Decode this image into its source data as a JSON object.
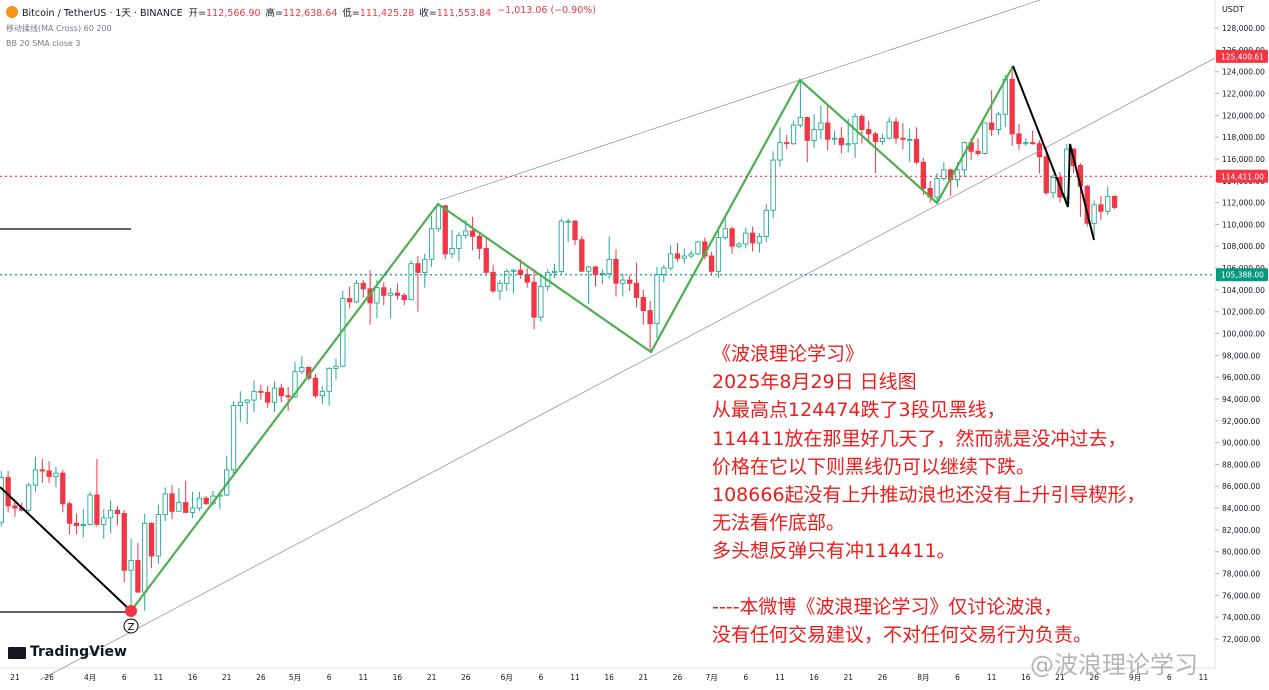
{
  "header": {
    "symbol": "Bitcoin / TetherUS · 1天 · BINANCE",
    "ohlc": [
      {
        "label": "开=",
        "text": "112,566.90"
      },
      {
        "label": "高=",
        "text": "112,638.64"
      },
      {
        "label": "低=",
        "text": "111,425.28"
      },
      {
        "label": "收=",
        "text": "111,553.84"
      }
    ],
    "change": "−1,013.06 (−0.90%)",
    "indicators": [
      "移动揉线(MA Cross) 60 200",
      "BB 20 SMA close 3"
    ],
    "currency": "USDT"
  },
  "chart_data": {
    "type": "candlestick",
    "up_color": "#22ab94",
    "down_color": "#f23645",
    "categories": [
      null,
      null,
      "21",
      null,
      null,
      null,
      null,
      "26",
      null,
      null,
      null,
      null,
      null,
      "4月",
      null,
      null,
      null,
      null,
      "6",
      null,
      null,
      null,
      null,
      "11",
      null,
      null,
      null,
      null,
      "16",
      null,
      null,
      null,
      null,
      "21",
      null,
      null,
      null,
      null,
      "26",
      null,
      null,
      null,
      null,
      "5月",
      null,
      null,
      null,
      null,
      "6",
      null,
      null,
      null,
      null,
      "11",
      null,
      null,
      null,
      null,
      "16",
      null,
      null,
      null,
      null,
      "21",
      null,
      null,
      null,
      null,
      "26",
      null,
      null,
      null,
      null,
      null,
      "6月",
      null,
      null,
      null,
      null,
      "6",
      null,
      null,
      null,
      null,
      "11",
      null,
      null,
      null,
      null,
      "16",
      null,
      null,
      null,
      null,
      "21",
      null,
      null,
      null,
      null,
      "26",
      null,
      null,
      null,
      null,
      "7月",
      null,
      null,
      null,
      null,
      "6",
      null,
      null,
      null,
      null,
      "11",
      null,
      null,
      null,
      null,
      "16",
      null,
      null,
      null,
      null,
      "21",
      null,
      null,
      null,
      null,
      "26",
      null,
      null,
      null,
      null,
      null,
      "8月",
      null,
      null,
      null,
      null,
      "6",
      null,
      null,
      null,
      null,
      "11",
      null,
      null,
      null,
      null,
      "16",
      null,
      null,
      null,
      null,
      "21",
      null,
      null,
      null,
      null,
      "26",
      null,
      null,
      null,
      null,
      null,
      "9月",
      null,
      null,
      null,
      null,
      "6",
      null,
      null,
      null,
      null,
      "11"
    ],
    "ohlc": [
      [
        82700,
        87400,
        82300,
        86800
      ],
      [
        86800,
        87400,
        83600,
        84200
      ],
      [
        84200,
        84800,
        83200,
        84000
      ],
      [
        84000,
        84500,
        83700,
        83800
      ],
      [
        83800,
        86300,
        83600,
        86100
      ],
      [
        86100,
        88700,
        85500,
        87500
      ],
      [
        87500,
        88500,
        86300,
        87400
      ],
      [
        87400,
        88300,
        86300,
        86900
      ],
      [
        86900,
        87800,
        85900,
        87200
      ],
      [
        87200,
        87500,
        83600,
        84400
      ],
      [
        84400,
        84600,
        81600,
        82600
      ],
      [
        82600,
        83500,
        81600,
        82400
      ],
      [
        82400,
        83900,
        81300,
        82500
      ],
      [
        82500,
        85500,
        82400,
        85200
      ],
      [
        85200,
        88500,
        82300,
        82500
      ],
      [
        82500,
        83900,
        81200,
        83100
      ],
      [
        83100,
        84700,
        81700,
        83800
      ],
      [
        83800,
        84200,
        82400,
        83500
      ],
      [
        83500,
        83800,
        77200,
        78300
      ],
      [
        78300,
        81200,
        74500,
        79200
      ],
      [
        79200,
        80800,
        76200,
        76300
      ],
      [
        76300,
        83500,
        74600,
        82600
      ],
      [
        82600,
        82700,
        78500,
        79600
      ],
      [
        79600,
        84300,
        78900,
        83400
      ],
      [
        83400,
        85900,
        82800,
        85300
      ],
      [
        85300,
        86100,
        83000,
        83700
      ],
      [
        83700,
        85800,
        83700,
        84500
      ],
      [
        84500,
        86500,
        83600,
        83600
      ],
      [
        83600,
        85500,
        83100,
        84000
      ],
      [
        84000,
        85500,
        83700,
        84900
      ],
      [
        84900,
        85100,
        84300,
        84400
      ],
      [
        84400,
        85600,
        84300,
        85100
      ],
      [
        85100,
        85300,
        83900,
        85200
      ],
      [
        85200,
        88800,
        85100,
        87500
      ],
      [
        87500,
        93800,
        87100,
        93400
      ],
      [
        93400,
        94700,
        91900,
        93700
      ],
      [
        93700,
        94000,
        91700,
        93900
      ],
      [
        93900,
        95700,
        92800,
        94700
      ],
      [
        94700,
        95300,
        93900,
        94600
      ],
      [
        94600,
        95200,
        93200,
        93700
      ],
      [
        93700,
        95600,
        92800,
        95000
      ],
      [
        95000,
        95400,
        93700,
        94300
      ],
      [
        94300,
        95100,
        92900,
        94200
      ],
      [
        94200,
        97400,
        94100,
        96500
      ],
      [
        96500,
        97900,
        96300,
        96900
      ],
      [
        96900,
        96900,
        95700,
        95900
      ],
      [
        95900,
        96300,
        94100,
        94300
      ],
      [
        94300,
        95200,
        93500,
        94700
      ],
      [
        94700,
        96900,
        93400,
        96800
      ],
      [
        96800,
        97700,
        95800,
        97000
      ],
      [
        97000,
        103900,
        96900,
        103200
      ],
      [
        103200,
        104300,
        102300,
        102900
      ],
      [
        102900,
        104900,
        102800,
        104600
      ],
      [
        104600,
        104900,
        103300,
        104100
      ],
      [
        104100,
        105800,
        100800,
        102800
      ],
      [
        102800,
        104900,
        101400,
        104200
      ],
      [
        104200,
        104700,
        102600,
        103500
      ],
      [
        103500,
        104200,
        101400,
        103700
      ],
      [
        103700,
        104600,
        103100,
        103500
      ],
      [
        103500,
        103700,
        102600,
        103100
      ],
      [
        103100,
        106700,
        103100,
        106400
      ],
      [
        106400,
        107100,
        102000,
        105600
      ],
      [
        105600,
        107300,
        104200,
        106800
      ],
      [
        106800,
        110800,
        106100,
        109600
      ],
      [
        109600,
        111900,
        109300,
        111700
      ],
      [
        111700,
        111800,
        106800,
        107300
      ],
      [
        107300,
        109500,
        106900,
        107800
      ],
      [
        107800,
        109300,
        106600,
        109000
      ],
      [
        109000,
        110400,
        108700,
        109400
      ],
      [
        109400,
        110700,
        107600,
        108900
      ],
      [
        108900,
        109300,
        106800,
        107800
      ],
      [
        107800,
        108900,
        105300,
        105600
      ],
      [
        105600,
        106300,
        103700,
        103900
      ],
      [
        103900,
        104900,
        103100,
        104600
      ],
      [
        104600,
        105900,
        103900,
        105700
      ],
      [
        105700,
        105900,
        103700,
        105800
      ],
      [
        105800,
        106800,
        105000,
        105400
      ],
      [
        105400,
        106000,
        104200,
        104700
      ],
      [
        104700,
        105900,
        100400,
        101500
      ],
      [
        101500,
        105300,
        101100,
        104300
      ],
      [
        104300,
        105900,
        103900,
        105600
      ],
      [
        105600,
        106400,
        105100,
        105700
      ],
      [
        105700,
        110500,
        105400,
        110300
      ],
      [
        110300,
        110500,
        108400,
        110300
      ],
      [
        110300,
        110400,
        108100,
        108600
      ],
      [
        108600,
        108900,
        105700,
        105700
      ],
      [
        105700,
        106200,
        102700,
        106100
      ],
      [
        106100,
        106200,
        104300,
        105400
      ],
      [
        105400,
        105900,
        104500,
        105500
      ],
      [
        105500,
        108900,
        105000,
        106800
      ],
      [
        106800,
        107700,
        103400,
        104600
      ],
      [
        104600,
        105500,
        103400,
        104900
      ],
      [
        104900,
        105300,
        103900,
        104600
      ],
      [
        104600,
        106500,
        102400,
        103300
      ],
      [
        103300,
        104000,
        100800,
        102100
      ],
      [
        102100,
        103000,
        98300,
        100900
      ],
      [
        100900,
        106100,
        99600,
        105400
      ],
      [
        105400,
        106300,
        104700,
        106000
      ],
      [
        106000,
        108100,
        105800,
        107300
      ],
      [
        107300,
        108300,
        106600,
        106900
      ],
      [
        106900,
        107800,
        106400,
        107100
      ],
      [
        107100,
        107600,
        106900,
        107300
      ],
      [
        107300,
        108500,
        107200,
        108400
      ],
      [
        108400,
        108800,
        106800,
        107100
      ],
      [
        107100,
        107500,
        105300,
        105700
      ],
      [
        105700,
        109800,
        105100,
        108800
      ],
      [
        108800,
        110600,
        108600,
        109600
      ],
      [
        109600,
        109800,
        107300,
        108000
      ],
      [
        108000,
        108400,
        107800,
        108200
      ],
      [
        108200,
        109700,
        107800,
        109200
      ],
      [
        109200,
        109800,
        107500,
        108300
      ],
      [
        108300,
        109200,
        107400,
        108900
      ],
      [
        108900,
        111900,
        108400,
        111300
      ],
      [
        111300,
        116700,
        110600,
        115900
      ],
      [
        115900,
        118900,
        115300,
        117500
      ],
      [
        117500,
        118200,
        116900,
        117400
      ],
      [
        117400,
        119500,
        117300,
        119100
      ],
      [
        119100,
        123200,
        118900,
        119800
      ],
      [
        119800,
        119900,
        115700,
        117700
      ],
      [
        117700,
        120100,
        117000,
        118700
      ],
      [
        118700,
        120900,
        117800,
        119300
      ],
      [
        119300,
        120900,
        116800,
        117800
      ],
      [
        117800,
        118600,
        117300,
        117900
      ],
      [
        117900,
        118900,
        116500,
        117300
      ],
      [
        117300,
        119700,
        116600,
        117400
      ],
      [
        117400,
        120200,
        116100,
        119900
      ],
      [
        119900,
        120100,
        117400,
        118700
      ],
      [
        118700,
        119500,
        117400,
        118300
      ],
      [
        118300,
        118500,
        114700,
        117600
      ],
      [
        117600,
        118300,
        117300,
        117900
      ],
      [
        117900,
        119800,
        117800,
        119400
      ],
      [
        119400,
        119800,
        117400,
        117900
      ],
      [
        117900,
        119300,
        116900,
        117800
      ],
      [
        117800,
        118800,
        115700,
        117800
      ],
      [
        117800,
        118900,
        115500,
        115700
      ],
      [
        115700,
        116100,
        112700,
        113300
      ],
      [
        113300,
        114000,
        112000,
        112500
      ],
      [
        112500,
        114700,
        112000,
        114200
      ],
      [
        114200,
        115700,
        114000,
        115000
      ],
      [
        115000,
        115100,
        112600,
        114100
      ],
      [
        114100,
        115700,
        113400,
        115000
      ],
      [
        115000,
        117600,
        114300,
        117500
      ],
      [
        117500,
        117900,
        115900,
        116700
      ],
      [
        116700,
        117900,
        116300,
        116500
      ],
      [
        116500,
        119300,
        116400,
        119300
      ],
      [
        119300,
        122300,
        118100,
        118700
      ],
      [
        118700,
        120300,
        118200,
        120100
      ],
      [
        120100,
        123700,
        118900,
        123300
      ],
      [
        123300,
        124474,
        117200,
        118300
      ],
      [
        118300,
        119200,
        116800,
        117400
      ],
      [
        117400,
        117900,
        117200,
        117500
      ],
      [
        117500,
        118600,
        117300,
        117400
      ],
      [
        117400,
        117700,
        114700,
        116200
      ],
      [
        116200,
        117000,
        112700,
        112900
      ],
      [
        112900,
        114600,
        112400,
        114300
      ],
      [
        114300,
        114800,
        112000,
        112500
      ],
      [
        112500,
        117400,
        111700,
        116900
      ],
      [
        116900,
        117000,
        114700,
        115400
      ],
      [
        115400,
        115600,
        110700,
        113500
      ],
      [
        113500,
        113600,
        109800,
        110100
      ],
      [
        110100,
        112200,
        108666,
        111800
      ],
      [
        111800,
        112600,
        110400,
        111200
      ],
      [
        111200,
        113500,
        110900,
        112566.9
      ],
      [
        112566.9,
        112638.64,
        111425.28,
        111553.84
      ],
      null,
      null,
      null,
      null,
      null,
      null,
      null,
      null,
      null,
      null,
      null,
      null,
      null
    ],
    "ylim": [
      69340,
      130570
    ],
    "yticks": [
      {
        "value": 72000,
        "label": "72,000.00"
      },
      {
        "value": 74000,
        "label": "74,000.00"
      },
      {
        "value": 76000,
        "label": "76,000.00"
      },
      {
        "value": 78000,
        "label": "78,000.00"
      },
      {
        "value": 80000,
        "label": "80,000.00"
      },
      {
        "value": 82000,
        "label": "82,000.00"
      },
      {
        "value": 84000,
        "label": "84,000.00"
      },
      {
        "value": 86000,
        "label": "86,000.00"
      },
      {
        "value": 88000,
        "label": "88,000.00"
      },
      {
        "value": 90000,
        "label": "90,000.00"
      },
      {
        "value": 92000,
        "label": "92,000.00"
      },
      {
        "value": 94000,
        "label": "94,000.00"
      },
      {
        "value": 96000,
        "label": "96,000.00"
      },
      {
        "value": 98000,
        "label": "98,000.00"
      },
      {
        "value": 100000,
        "label": "100,000.00"
      },
      {
        "value": 102000,
        "label": "102,000.00"
      },
      {
        "value": 104000,
        "label": "104,000.00"
      },
      {
        "value": 106000,
        "label": "106,000.00"
      },
      {
        "value": 108000,
        "label": "108,000.00"
      },
      {
        "value": 110000,
        "label": "110,000.00"
      },
      {
        "value": 112000,
        "label": "112,000.00"
      },
      {
        "value": 114000,
        "label": "114,000.00"
      },
      {
        "value": 116000,
        "label": "116,000.00"
      },
      {
        "value": 118000,
        "label": "118,000.00"
      },
      {
        "value": 120000,
        "label": "120,000.00"
      },
      {
        "value": 122000,
        "label": "122,000.00"
      },
      {
        "value": 124000,
        "label": "124,000.00"
      },
      {
        "value": 126000,
        "label": "126,000.00"
      },
      {
        "value": 128000,
        "label": "128,000.00"
      }
    ],
    "levels": [
      {
        "value": 114411,
        "label": "114,411.00",
        "color": "#f23645",
        "line": true
      },
      {
        "value": 105388,
        "label": "105,388.00",
        "color": "#089981",
        "line": true
      },
      {
        "value": 125400.61,
        "label": "125,400.61",
        "color": "#f23645",
        "line": false
      }
    ],
    "wave_label": "Z",
    "note": [
      "《波浪理论学习》",
      "2025年8月29日 日线图",
      "从最高点124474跌了3段见黑线，",
      "114411放在那里好几天了，然而就是没冲过去，",
      "价格在它以下则黑线仍可以继续下跌。",
      "108666起没有上升推动浪也还没有上升引导楔形，",
      "无法看作底部。",
      "多头想反弹只有冲114411。"
    ],
    "disclaimer": [
      "----本微博《波浪理论学习》仅讨论波浪，",
      "没有任何交易建议，不对任何交易行为负责。"
    ]
  },
  "brand": "TradingView",
  "watermark": "@波浪理论学习"
}
